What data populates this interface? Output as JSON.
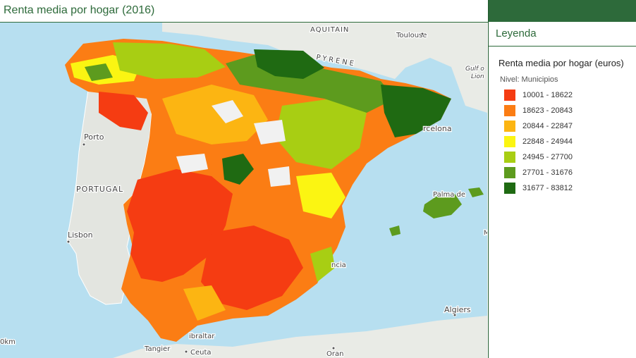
{
  "header": {
    "title": "Renta media por hogar (2016)"
  },
  "legend_panel": {
    "title": "Leyenda",
    "layer_title": "Renta media por hogar (euros)",
    "level_label": "Nivel: Municipios",
    "items": [
      {
        "label": "10001 - 18622",
        "color": "#f53c12"
      },
      {
        "label": "18623 - 20843",
        "color": "#fb7d14"
      },
      {
        "label": "20844 - 22847",
        "color": "#fcb512"
      },
      {
        "label": "22848 - 24944",
        "color": "#fbf512"
      },
      {
        "label": "24945 - 27700",
        "color": "#a8ce13"
      },
      {
        "label": "27701 - 31676",
        "color": "#5d9b1e"
      },
      {
        "label": "31677 - 83812",
        "color": "#1f6a12"
      }
    ]
  },
  "map": {
    "labels": {
      "aquitain": "AQUITAIN",
      "toulouse": "Toulouse",
      "pyrenees": "PYRENE",
      "gulf": "Gulf o",
      "lion": "Lion",
      "barcelona": "rcelona",
      "porto": "Porto",
      "portugal": "PORTUGAL",
      "lisbon": "Lisbon",
      "palma": "Palma de",
      "valencia": "ncia",
      "algiers": "Algiers",
      "gibraltar": "ibraltar",
      "tangier": "Tangier",
      "ceuta": "Ceuta",
      "oran": "Oran",
      "scale": "0km",
      "edge_m": "M"
    }
  }
}
